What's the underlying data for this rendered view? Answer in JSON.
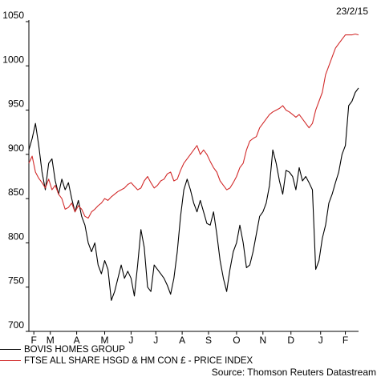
{
  "date_label": "23/2/15",
  "source": "Source: Thomson Reuters Datastream",
  "chart_data": {
    "type": "line",
    "ylim": [
      700,
      1050
    ],
    "yticks": [
      700,
      750,
      800,
      850,
      900,
      950,
      1000,
      1050
    ],
    "xlim": [
      0,
      100
    ],
    "xtick_labels": [
      "F",
      "M",
      "A",
      "M",
      "J",
      "J",
      "A",
      "S",
      "O",
      "N",
      "D",
      "J",
      "F"
    ],
    "xtick_positions": [
      1.5,
      6.5,
      14.5,
      23,
      31,
      38.5,
      46.5,
      54.5,
      63,
      71,
      79.5,
      88.5,
      96
    ],
    "grid": false,
    "legend": "bottom-left",
    "series": [
      {
        "name": "BOVIS HOMES GROUP",
        "color": "#000000",
        "x": [
          0,
          1,
          2,
          3,
          4,
          5,
          6,
          7,
          8,
          9,
          10,
          11,
          12,
          13,
          14,
          15,
          16,
          17,
          18,
          19,
          20,
          21,
          22,
          23,
          24,
          25,
          26,
          27,
          28,
          29,
          30,
          31,
          32,
          33,
          34,
          35,
          36,
          37,
          38,
          39,
          40,
          41,
          42,
          43,
          44,
          45,
          46,
          47,
          48,
          49,
          50,
          51,
          52,
          53,
          54,
          55,
          56,
          57,
          58,
          59,
          60,
          61,
          62,
          63,
          64,
          65,
          66,
          67,
          68,
          69,
          70,
          71,
          72,
          73,
          74,
          75,
          76,
          77,
          78,
          79,
          80,
          81,
          82,
          83,
          84,
          85,
          86,
          87,
          88,
          89,
          90,
          91,
          92,
          93,
          94,
          95,
          96,
          97,
          98,
          99,
          100
        ],
        "values": [
          905,
          918,
          935,
          910,
          880,
          860,
          890,
          895,
          870,
          855,
          872,
          860,
          868,
          850,
          835,
          848,
          830,
          820,
          800,
          790,
          800,
          775,
          765,
          780,
          770,
          735,
          745,
          760,
          775,
          760,
          768,
          760,
          740,
          775,
          815,
          795,
          750,
          745,
          775,
          770,
          765,
          760,
          752,
          742,
          760,
          790,
          830,
          860,
          872,
          860,
          845,
          835,
          848,
          835,
          822,
          820,
          835,
          810,
          780,
          760,
          745,
          770,
          790,
          800,
          820,
          800,
          772,
          775,
          790,
          810,
          830,
          835,
          845,
          865,
          905,
          890,
          870,
          855,
          882,
          880,
          875,
          860,
          885,
          870,
          875,
          868,
          860,
          770,
          780,
          805,
          820,
          845,
          855,
          868,
          880,
          900,
          910,
          955,
          960,
          970,
          975
        ]
      },
      {
        "name": "FTSE ALL SHARE HSGD & HM CON £ - PRICE INDEX",
        "color": "#d22b2b",
        "x": [
          0,
          1,
          2,
          3,
          4,
          5,
          6,
          7,
          8,
          9,
          10,
          11,
          12,
          13,
          14,
          15,
          16,
          17,
          18,
          19,
          20,
          21,
          22,
          23,
          24,
          25,
          26,
          27,
          28,
          29,
          30,
          31,
          32,
          33,
          34,
          35,
          36,
          37,
          38,
          39,
          40,
          41,
          42,
          43,
          44,
          45,
          46,
          47,
          48,
          49,
          50,
          51,
          52,
          53,
          54,
          55,
          56,
          57,
          58,
          59,
          60,
          61,
          62,
          63,
          64,
          65,
          66,
          67,
          68,
          69,
          70,
          71,
          72,
          73,
          74,
          75,
          76,
          77,
          78,
          79,
          80,
          81,
          82,
          83,
          84,
          85,
          86,
          87,
          88,
          89,
          90,
          91,
          92,
          93,
          94,
          95,
          96,
          97,
          98,
          99,
          100
        ],
        "values": [
          890,
          898,
          880,
          873,
          868,
          862,
          872,
          860,
          865,
          855,
          850,
          838,
          840,
          845,
          835,
          842,
          838,
          830,
          828,
          835,
          838,
          842,
          845,
          850,
          848,
          852,
          855,
          858,
          860,
          862,
          866,
          868,
          864,
          860,
          862,
          870,
          875,
          868,
          862,
          865,
          870,
          872,
          878,
          880,
          870,
          872,
          882,
          890,
          895,
          900,
          905,
          910,
          900,
          905,
          900,
          892,
          885,
          880,
          870,
          865,
          860,
          862,
          868,
          875,
          885,
          890,
          905,
          915,
          918,
          920,
          930,
          935,
          940,
          945,
          948,
          950,
          952,
          955,
          950,
          948,
          945,
          942,
          945,
          940,
          935,
          930,
          935,
          950,
          960,
          970,
          990,
          1000,
          1010,
          1020,
          1025,
          1030,
          1035,
          1035,
          1035,
          1036,
          1035
        ]
      }
    ]
  }
}
